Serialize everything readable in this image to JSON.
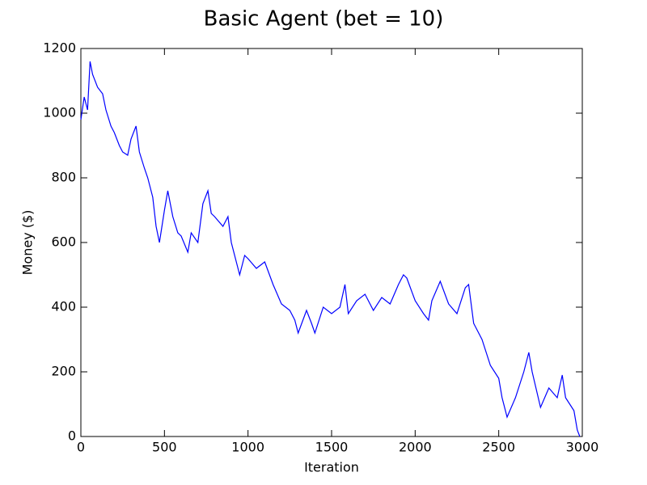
{
  "chart_data": {
    "type": "line",
    "title": "Basic Agent (bet = 10)",
    "xlabel": "Iteration",
    "ylabel": "Money ($)",
    "x": [
      0,
      20,
      40,
      55,
      70,
      100,
      130,
      150,
      180,
      200,
      230,
      250,
      280,
      300,
      330,
      350,
      380,
      400,
      430,
      450,
      470,
      500,
      520,
      550,
      580,
      600,
      640,
      660,
      700,
      730,
      760,
      780,
      800,
      850,
      880,
      900,
      950,
      980,
      1000,
      1050,
      1100,
      1150,
      1200,
      1250,
      1280,
      1300,
      1350,
      1380,
      1400,
      1450,
      1500,
      1550,
      1580,
      1600,
      1650,
      1700,
      1750,
      1800,
      1850,
      1900,
      1930,
      1950,
      2000,
      2050,
      2080,
      2100,
      2150,
      2200,
      2250,
      2300,
      2320,
      2350,
      2400,
      2450,
      2500,
      2520,
      2550,
      2600,
      2650,
      2680,
      2700,
      2750,
      2800,
      2850,
      2880,
      2900,
      2950,
      2970,
      2985
    ],
    "series": [
      {
        "name": "Money",
        "color": "#0000ff",
        "values": [
          980,
          1050,
          1010,
          1160,
          1120,
          1080,
          1060,
          1010,
          960,
          940,
          900,
          880,
          870,
          920,
          960,
          880,
          830,
          800,
          740,
          650,
          600,
          700,
          760,
          680,
          630,
          620,
          570,
          630,
          600,
          720,
          760,
          690,
          680,
          650,
          680,
          600,
          500,
          560,
          550,
          520,
          540,
          470,
          410,
          390,
          360,
          320,
          390,
          350,
          320,
          400,
          380,
          400,
          470,
          380,
          420,
          440,
          390,
          430,
          410,
          470,
          500,
          490,
          420,
          380,
          360,
          420,
          480,
          410,
          380,
          460,
          470,
          350,
          300,
          220,
          180,
          120,
          60,
          120,
          200,
          260,
          200,
          90,
          150,
          120,
          190,
          120,
          80,
          20,
          0
        ]
      }
    ],
    "xlim": [
      0,
      3000
    ],
    "ylim": [
      0,
      1200
    ],
    "xticks": [
      0,
      500,
      1000,
      1500,
      2000,
      2500,
      3000
    ],
    "yticks": [
      0,
      200,
      400,
      600,
      800,
      1000,
      1200
    ],
    "grid": false
  }
}
